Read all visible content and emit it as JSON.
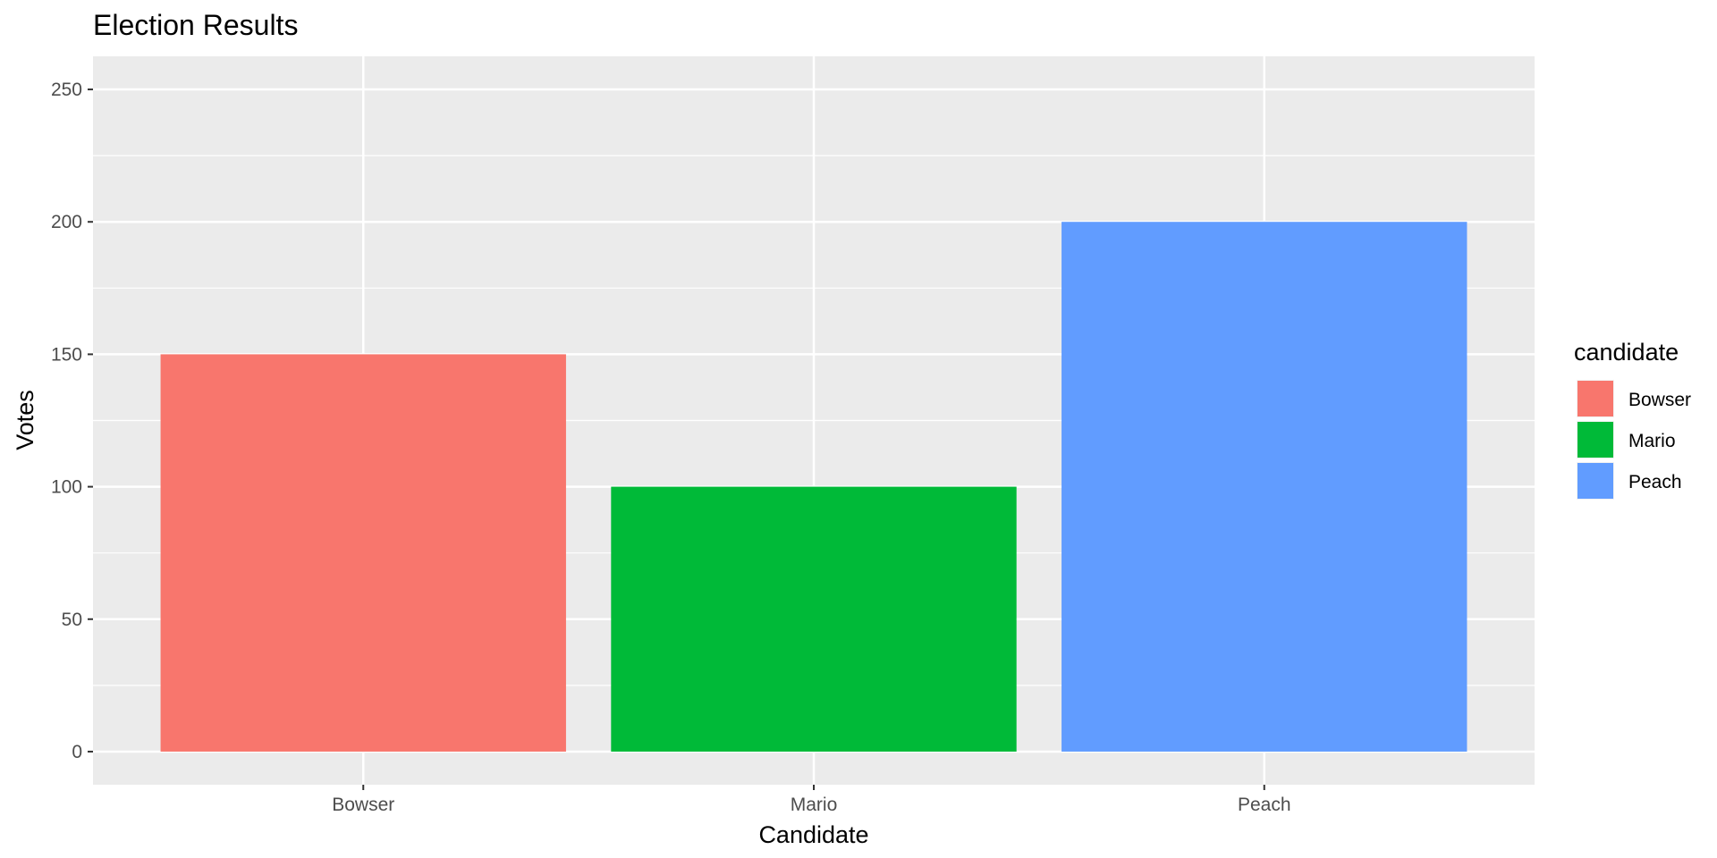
{
  "chart_data": {
    "type": "bar",
    "title": "Election Results",
    "xlabel": "Candidate",
    "ylabel": "Votes",
    "categories": [
      "Bowser",
      "Mario",
      "Peach"
    ],
    "values": [
      150,
      100,
      200
    ],
    "colors": [
      "#F8766D",
      "#00BA38",
      "#619CFF"
    ],
    "ylim": [
      -12.5,
      262.5
    ],
    "yticks": [
      0,
      50,
      100,
      150,
      200,
      250
    ],
    "grid": true,
    "legend": {
      "title": "candidate",
      "position": "right",
      "entries": [
        "Bowser",
        "Mario",
        "Peach"
      ]
    }
  },
  "colors": {
    "panel_background": "#EBEBEB",
    "grid_line": "#FFFFFF",
    "axis_text": "#4D4D4D",
    "text": "#000000"
  }
}
